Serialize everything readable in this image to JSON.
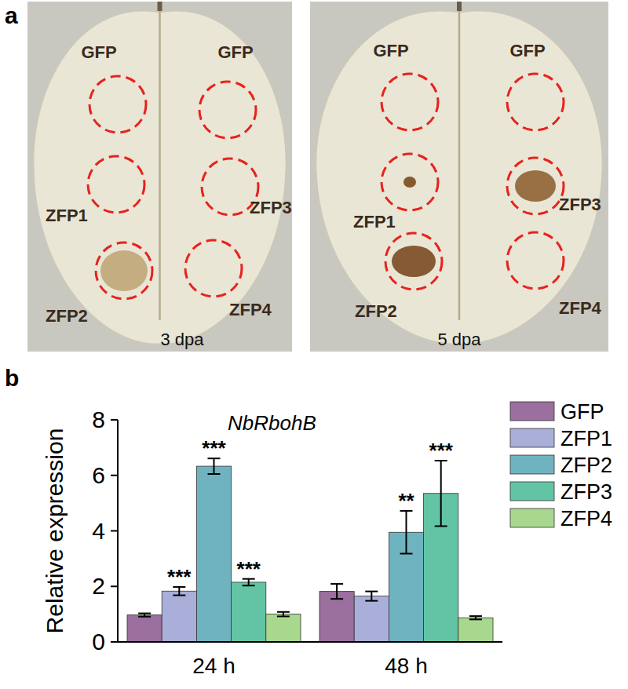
{
  "panel_labels": [
    "a",
    "b"
  ],
  "photos": [
    {
      "caption": "3 dpa",
      "spots": [
        "GFP",
        "GFP",
        "ZFP1",
        "ZFP3",
        "ZFP2",
        "ZFP4"
      ]
    },
    {
      "caption": "5 dpa",
      "spots": [
        "GFP",
        "GFP",
        "ZFP1",
        "ZFP3",
        "ZFP2",
        "ZFP4"
      ]
    }
  ],
  "chart_data": {
    "type": "bar",
    "title": "NbRbohB",
    "y_label": "Relative expression",
    "categories": [
      "24 h",
      "48 h"
    ],
    "series": [
      {
        "name": "GFP",
        "color": "#9b6f9e",
        "values": [
          0.97,
          1.82
        ],
        "errors": [
          0.06,
          0.27
        ],
        "significance": [
          null,
          null
        ]
      },
      {
        "name": "ZFP1",
        "color": "#a9afd8",
        "values": [
          1.83,
          1.65
        ],
        "errors": [
          0.15,
          0.17
        ],
        "significance": [
          "***",
          null
        ]
      },
      {
        "name": "ZFP2",
        "color": "#6fb3c0",
        "values": [
          6.33,
          3.95
        ],
        "errors": [
          0.28,
          0.77
        ],
        "significance": [
          "***",
          "**"
        ]
      },
      {
        "name": "ZFP3",
        "color": "#62c4a4",
        "values": [
          2.15,
          5.35
        ],
        "errors": [
          0.12,
          1.18
        ],
        "significance": [
          "***",
          "***"
        ]
      },
      {
        "name": "ZFP4",
        "color": "#a8d88e",
        "values": [
          1.0,
          0.87
        ],
        "errors": [
          0.08,
          0.06
        ],
        "significance": [
          null,
          null
        ]
      }
    ],
    "ylim": [
      0,
      8
    ],
    "yticks": [
      0,
      2,
      4,
      6,
      8
    ],
    "grid": false,
    "legend": "right"
  }
}
